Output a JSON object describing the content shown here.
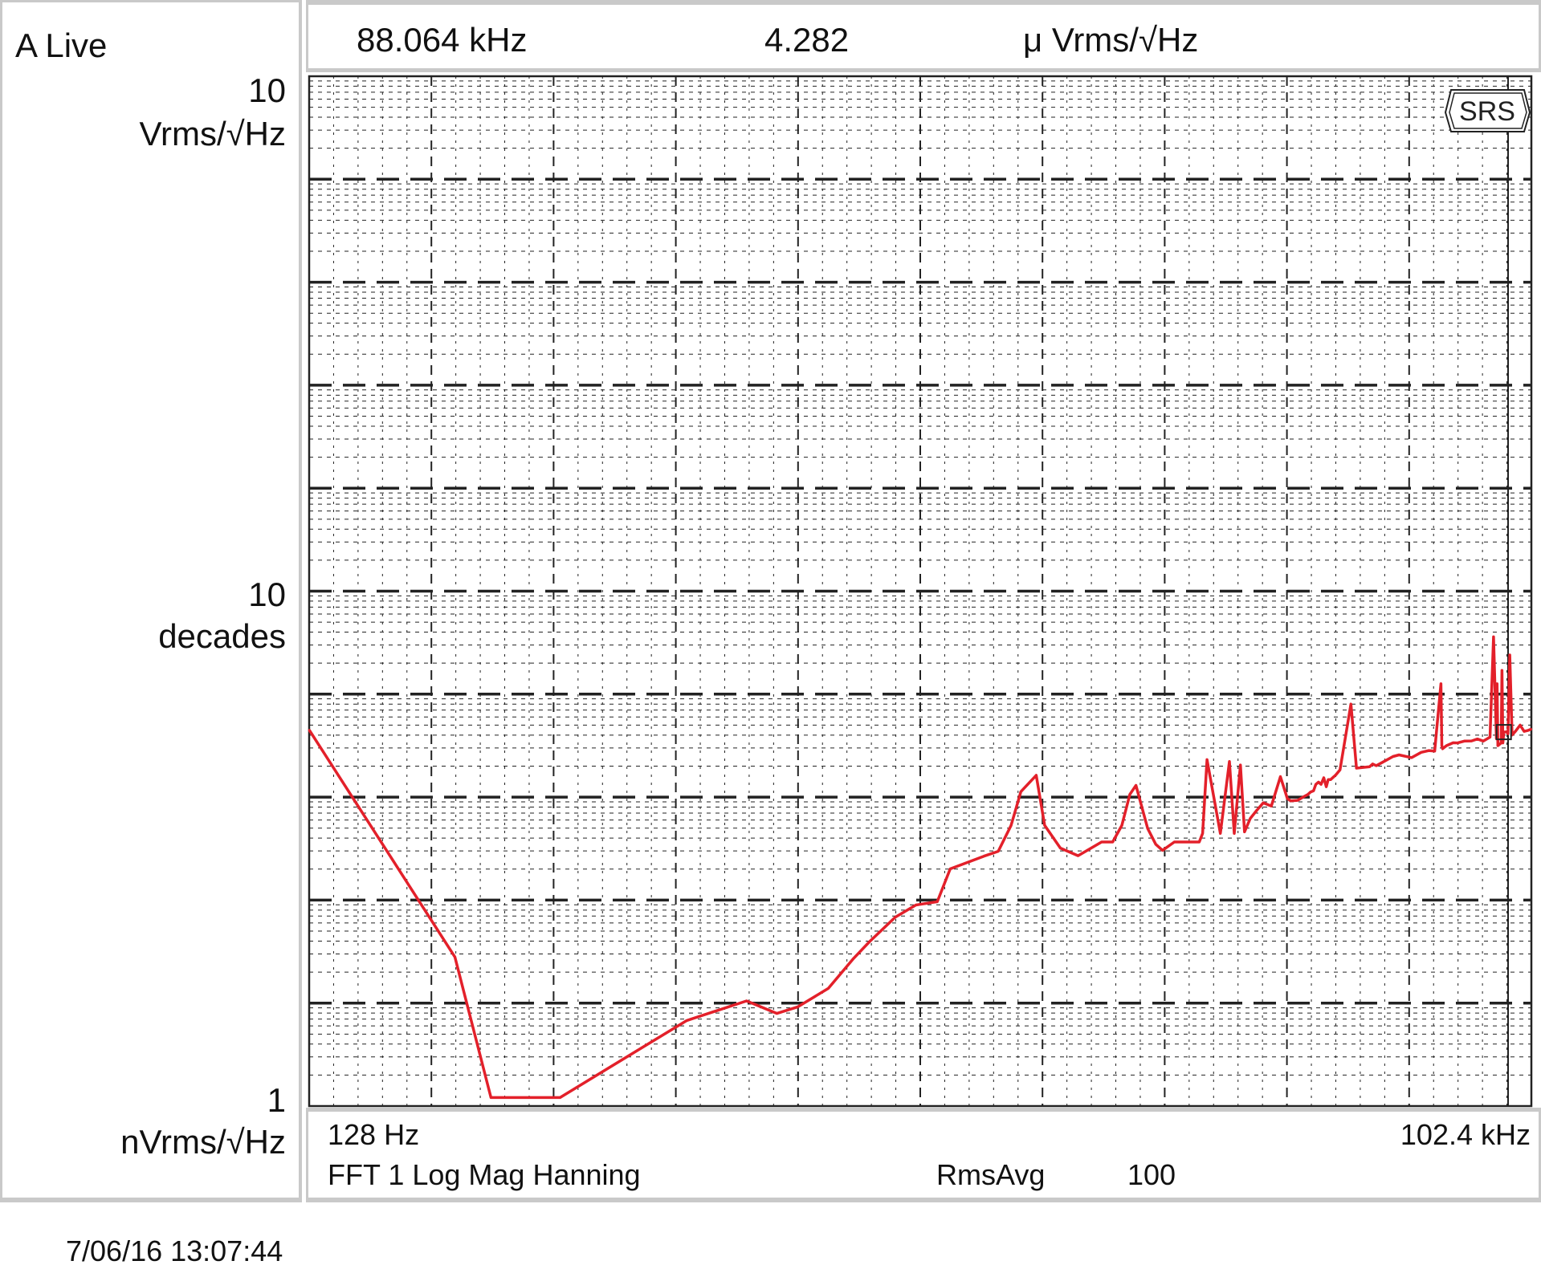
{
  "status": {
    "channel_label": "A Live",
    "timestamp": "7/06/16  13:07:44"
  },
  "marker": {
    "frequency": "88.064 kHz",
    "value": "4.282",
    "unit": "μ Vrms/√Hz"
  },
  "left_scale": {
    "top_value": "10",
    "top_unit": "Vrms/√Hz",
    "mid_value": "10",
    "mid_unit": "decades",
    "bottom_value": "1",
    "bottom_unit": "nVrms/√Hz"
  },
  "footer": {
    "start_freq": "128 Hz",
    "end_freq": "102.4 kHz",
    "measurement": "FFT 1 Log Mag Hanning",
    "avg_label": "RmsAvg",
    "avg_count": "100"
  },
  "logo": "SRS",
  "colors": {
    "trace": "#e3202a",
    "grid": "#222222",
    "border": "#c9c9c9"
  },
  "chart_data": {
    "type": "line",
    "x_scale": "log",
    "y_scale": "log",
    "grid": true,
    "xlim_hz": [
      128,
      102400
    ],
    "ylim_decades": [
      0,
      10
    ],
    "x_hz": [
      128,
      284,
      346,
      404,
      505,
      783,
      1010,
      1400,
      1653,
      1850,
      2190,
      2515,
      2745,
      3160,
      3535,
      3974,
      4265,
      5126,
      5546,
      5950,
      6276,
      6825,
      7147,
      7790,
      8580,
      9760,
      10370,
      10900,
      11390,
      11780,
      12560,
      13130,
      13620,
      14530,
      15690,
      16650,
      16960,
      17370,
      18690,
      19640,
      20160,
      20860,
      21330,
      22010,
      22840,
      23640,
      24700,
      25960,
      26950,
      27430,
      28510,
      29620,
      30130,
      30600,
      31110,
      31500,
      31970,
      32410,
      32900,
      33360,
      33700,
      34160,
      34770,
      35160,
      35950,
      38170,
      39340,
      42260,
      43000,
      43860,
      45550,
      48040,
      49650,
      53200,
      56060,
      58460,
      60340,
      62460,
      62760,
      63040,
      64380,
      66760,
      68370,
      71000,
      73830,
      76220,
      78740,
      81660,
      83270,
      84600,
      84900,
      85250,
      86830,
      87200,
      87600,
      88064,
      89450,
      90130,
      91000,
      92150,
      93820,
      96300,
      98450,
      100680,
      102400
    ],
    "y_uVrms_per_rtHz": [
      4.5,
      0.028,
      0.00121,
      0.00121,
      0.00121,
      0.00361,
      0.00677,
      0.0105,
      0.00794,
      0.00916,
      0.0139,
      0.0272,
      0.0396,
      0.0684,
      0.0897,
      0.0965,
      0.201,
      0.267,
      0.298,
      0.532,
      1.13,
      1.63,
      0.532,
      0.32,
      0.27,
      0.367,
      0.367,
      0.531,
      1.063,
      1.3,
      0.496,
      0.348,
      0.304,
      0.367,
      0.367,
      0.367,
      0.444,
      2.31,
      0.444,
      2.22,
      0.444,
      2.05,
      0.46,
      0.622,
      0.75,
      0.88,
      0.82,
      1.58,
      0.97,
      0.92,
      0.93,
      1.02,
      1.06,
      1.12,
      1.15,
      1.33,
      1.4,
      1.33,
      1.54,
      1.26,
      1.48,
      1.48,
      1.58,
      1.65,
      1.84,
      8.0,
      1.91,
      1.97,
      2.1,
      2.02,
      2.2,
      2.48,
      2.57,
      2.42,
      2.72,
      2.83,
      2.8,
      12.6,
      3.16,
      2.95,
      3.16,
      3.37,
      3.36,
      3.5,
      3.51,
      3.67,
      3.5,
      3.82,
      36.0,
      3.7,
      12.6,
      3.16,
      3.36,
      17.0,
      3.36,
      4.282,
      4.3,
      4.12,
      24.0,
      4.01,
      4.35,
      5.0,
      4.35,
      4.45,
      4.57
    ]
  }
}
